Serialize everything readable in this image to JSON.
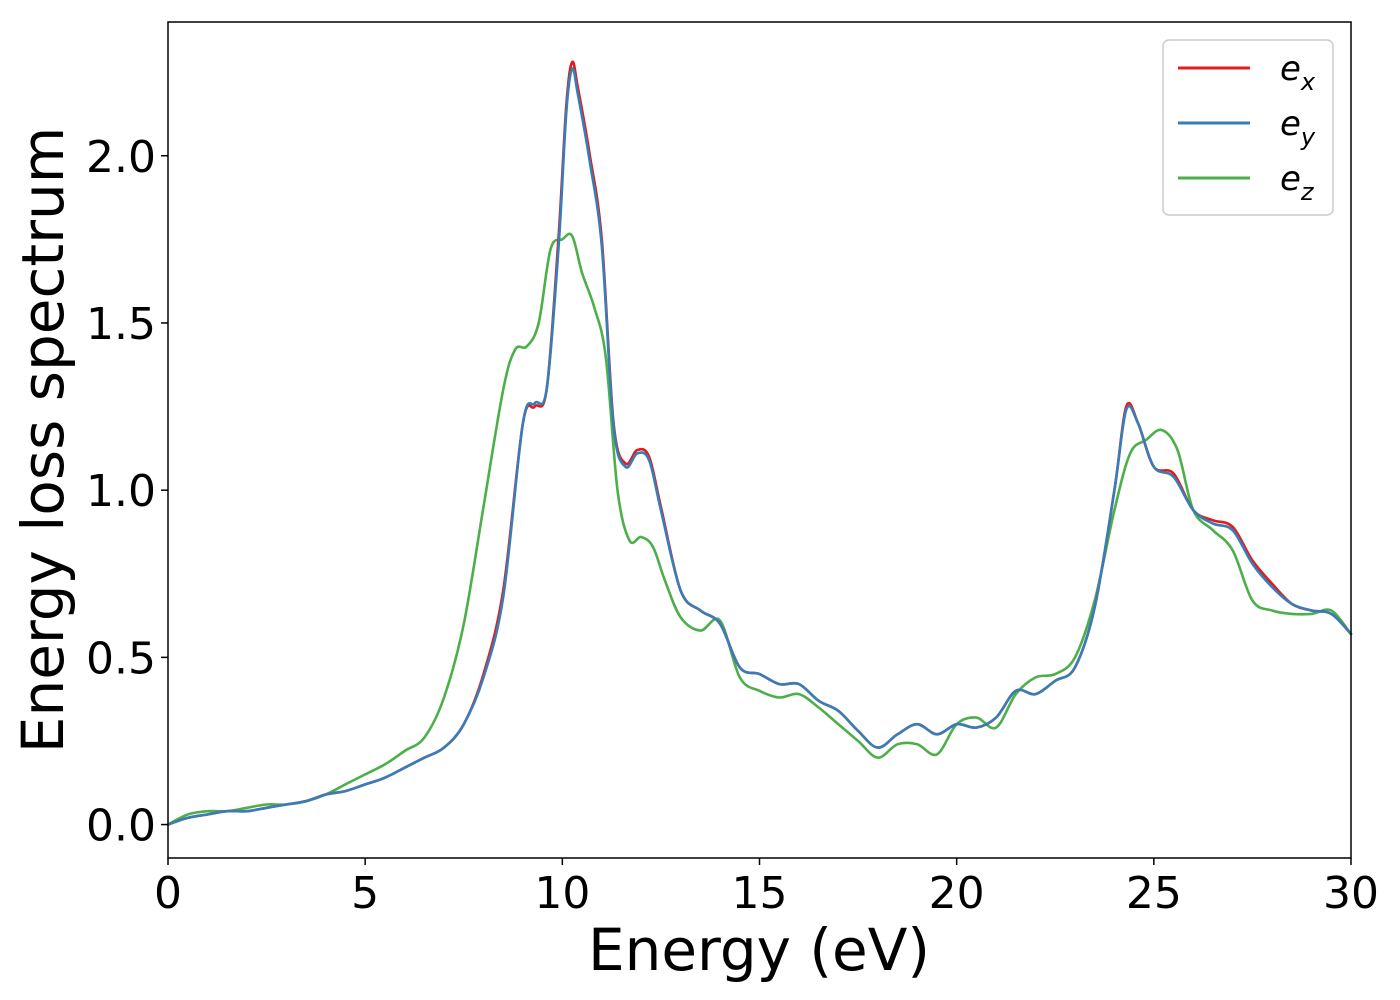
{
  "chart_data": {
    "type": "line",
    "title": "",
    "xlabel": "Energy (eV)",
    "ylabel": "Energy loss spectrum",
    "xlim": [
      0,
      30
    ],
    "ylim": [
      -0.1,
      2.4
    ],
    "xticks": [
      0,
      5,
      10,
      15,
      20,
      25,
      30
    ],
    "xtick_labels": [
      "0",
      "5",
      "10",
      "15",
      "20",
      "25",
      "30"
    ],
    "yticks": [
      0.0,
      0.5,
      1.0,
      1.5,
      2.0
    ],
    "ytick_labels": [
      "0.0",
      "0.5",
      "1.0",
      "1.5",
      "2.0"
    ],
    "grid": false,
    "legend_position": "top-right",
    "series": [
      {
        "name_base": "e",
        "name_sub": "x",
        "color": "#e41a1c",
        "x": [
          0,
          0.5,
          1,
          1.5,
          2,
          2.5,
          3,
          3.5,
          4,
          4.5,
          5,
          5.5,
          6,
          6.5,
          7,
          7.5,
          8,
          8.5,
          9,
          9.3,
          9.6,
          9.9,
          10.1,
          10.25,
          10.4,
          10.7,
          11,
          11.3,
          11.6,
          11.9,
          12.2,
          12.5,
          13,
          13.5,
          14,
          14.5,
          15,
          15.5,
          16,
          16.5,
          17,
          17.5,
          18,
          18.5,
          19,
          19.5,
          20,
          20.5,
          21,
          21.5,
          22,
          22.5,
          23,
          23.5,
          24,
          24.3,
          24.6,
          25,
          25.5,
          26,
          26.5,
          27,
          27.5,
          28,
          28.5,
          29,
          29.5,
          30
        ],
        "y": [
          0.0,
          0.02,
          0.03,
          0.04,
          0.04,
          0.05,
          0.06,
          0.07,
          0.09,
          0.1,
          0.12,
          0.14,
          0.17,
          0.2,
          0.23,
          0.3,
          0.45,
          0.7,
          1.2,
          1.25,
          1.3,
          1.75,
          2.15,
          2.28,
          2.2,
          2.0,
          1.75,
          1.2,
          1.08,
          1.12,
          1.1,
          0.95,
          0.7,
          0.64,
          0.6,
          0.47,
          0.45,
          0.42,
          0.42,
          0.37,
          0.34,
          0.28,
          0.23,
          0.27,
          0.3,
          0.27,
          0.3,
          0.29,
          0.32,
          0.4,
          0.39,
          0.43,
          0.47,
          0.65,
          1.0,
          1.25,
          1.2,
          1.07,
          1.05,
          0.94,
          0.91,
          0.89,
          0.79,
          0.72,
          0.66,
          0.64,
          0.63,
          0.57
        ]
      },
      {
        "name_base": "e",
        "name_sub": "y",
        "color": "#377eb8",
        "x": [
          0,
          0.5,
          1,
          1.5,
          2,
          2.5,
          3,
          3.5,
          4,
          4.5,
          5,
          5.5,
          6,
          6.5,
          7,
          7.5,
          8,
          8.5,
          9,
          9.3,
          9.6,
          9.9,
          10.1,
          10.25,
          10.4,
          10.7,
          11,
          11.3,
          11.6,
          11.9,
          12.2,
          12.5,
          13,
          13.5,
          14,
          14.5,
          15,
          15.5,
          16,
          16.5,
          17,
          17.5,
          18,
          18.5,
          19,
          19.5,
          20,
          20.5,
          21,
          21.5,
          22,
          22.5,
          23,
          23.5,
          24,
          24.3,
          24.6,
          25,
          25.5,
          26,
          26.5,
          27,
          27.5,
          28,
          28.5,
          29,
          29.5,
          30
        ],
        "y": [
          0.0,
          0.02,
          0.03,
          0.04,
          0.04,
          0.05,
          0.06,
          0.07,
          0.09,
          0.1,
          0.12,
          0.14,
          0.17,
          0.2,
          0.23,
          0.3,
          0.44,
          0.68,
          1.2,
          1.26,
          1.3,
          1.72,
          2.13,
          2.26,
          2.18,
          1.98,
          1.73,
          1.19,
          1.07,
          1.11,
          1.09,
          0.94,
          0.7,
          0.64,
          0.6,
          0.47,
          0.45,
          0.42,
          0.42,
          0.37,
          0.34,
          0.28,
          0.23,
          0.27,
          0.3,
          0.27,
          0.3,
          0.29,
          0.32,
          0.4,
          0.39,
          0.43,
          0.47,
          0.65,
          1.0,
          1.24,
          1.2,
          1.07,
          1.04,
          0.94,
          0.9,
          0.88,
          0.78,
          0.71,
          0.66,
          0.64,
          0.63,
          0.57
        ]
      },
      {
        "name_base": "e",
        "name_sub": "z",
        "color": "#4daf4a",
        "x": [
          0,
          0.5,
          1,
          1.5,
          2,
          2.5,
          3,
          3.5,
          4,
          4.5,
          5,
          5.5,
          6,
          6.5,
          7,
          7.5,
          8,
          8.5,
          8.8,
          9.1,
          9.4,
          9.7,
          10,
          10.25,
          10.5,
          10.8,
          11.1,
          11.4,
          11.7,
          12,
          12.3,
          12.6,
          13,
          13.5,
          14,
          14.5,
          15,
          15.5,
          16,
          16.5,
          17,
          17.5,
          18,
          18.5,
          19,
          19.5,
          20,
          20.5,
          21,
          21.5,
          22,
          22.5,
          23,
          23.5,
          24,
          24.4,
          24.8,
          25.2,
          25.6,
          26,
          26.5,
          27,
          27.5,
          28,
          28.5,
          29,
          29.5,
          30
        ],
        "y": [
          0.0,
          0.03,
          0.04,
          0.04,
          0.05,
          0.06,
          0.06,
          0.07,
          0.09,
          0.12,
          0.15,
          0.18,
          0.22,
          0.26,
          0.38,
          0.6,
          0.95,
          1.3,
          1.42,
          1.43,
          1.5,
          1.72,
          1.75,
          1.76,
          1.65,
          1.55,
          1.4,
          1.0,
          0.85,
          0.86,
          0.83,
          0.73,
          0.62,
          0.58,
          0.61,
          0.44,
          0.4,
          0.38,
          0.39,
          0.35,
          0.3,
          0.25,
          0.2,
          0.24,
          0.24,
          0.21,
          0.3,
          0.32,
          0.29,
          0.39,
          0.44,
          0.45,
          0.5,
          0.67,
          0.94,
          1.11,
          1.15,
          1.18,
          1.12,
          0.94,
          0.88,
          0.82,
          0.67,
          0.64,
          0.63,
          0.63,
          0.64,
          0.57
        ]
      }
    ]
  }
}
